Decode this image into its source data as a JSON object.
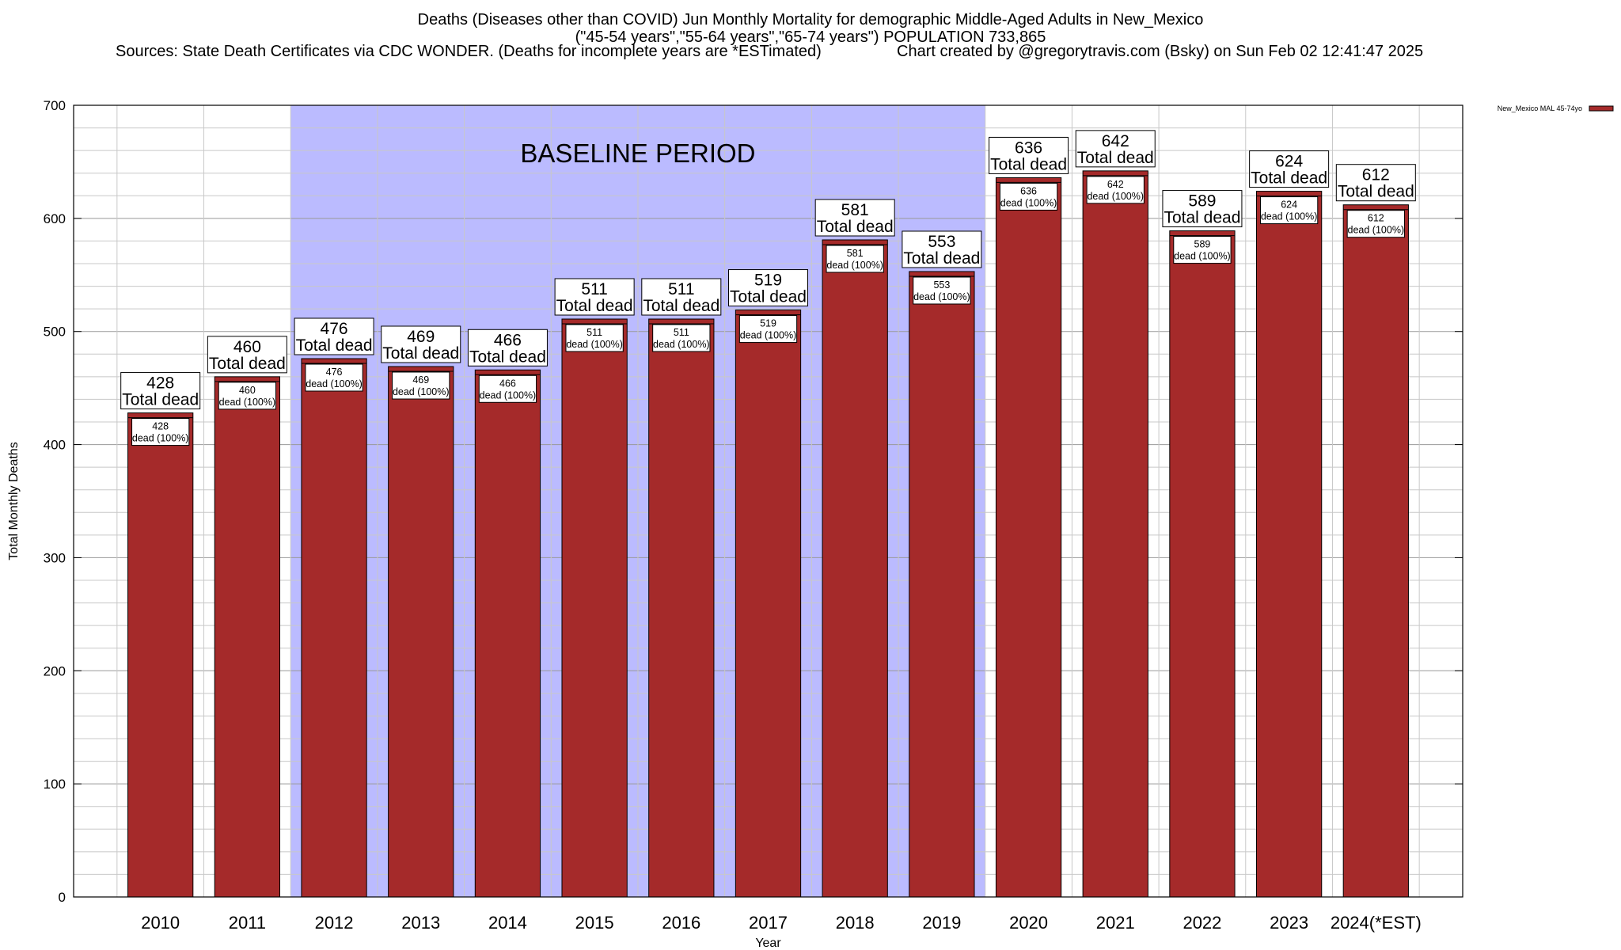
{
  "header": {
    "line1": "Deaths (Diseases other than COVID) Jun Monthly Mortality for demographic Middle-Aged Adults in New_Mexico",
    "line2": "(\"45-54 years\",\"55-64 years\",\"65-74 years\") POPULATION 733,865",
    "line3_left": "Sources: State Death Certificates via CDC WONDER. (Deaths for incomplete years are *ESTimated)",
    "line3_right": "Chart created by @gregorytravis.com (Bsky) on Sun Feb 02 12:41:47 2025"
  },
  "chart_data": {
    "type": "bar",
    "xlabel": "Year",
    "ylabel": "Total Monthly Deaths",
    "ylim": [
      0,
      700
    ],
    "yticks": [
      0,
      100,
      200,
      300,
      400,
      500,
      600,
      700
    ],
    "grid": true,
    "categories": [
      "2010",
      "2011",
      "2012",
      "2013",
      "2014",
      "2015",
      "2016",
      "2017",
      "2018",
      "2019",
      "2020",
      "2021",
      "2022",
      "2023",
      "2024(*EST)"
    ],
    "series": [
      {
        "name": "New_Mexico MAL 45-74yo",
        "values": [
          428,
          460,
          476,
          469,
          466,
          511,
          511,
          519,
          581,
          553,
          636,
          642,
          589,
          624,
          612
        ],
        "color": "#a52a2a"
      }
    ],
    "top_label_suffix": "Total dead",
    "inner_label_suffix": "dead (100%)",
    "annotation": {
      "text": "BASELINE PERIOD",
      "from_category": "2012",
      "to_category": "2019",
      "color": "#bbbbff"
    },
    "legend": {
      "position": "top-right"
    }
  }
}
